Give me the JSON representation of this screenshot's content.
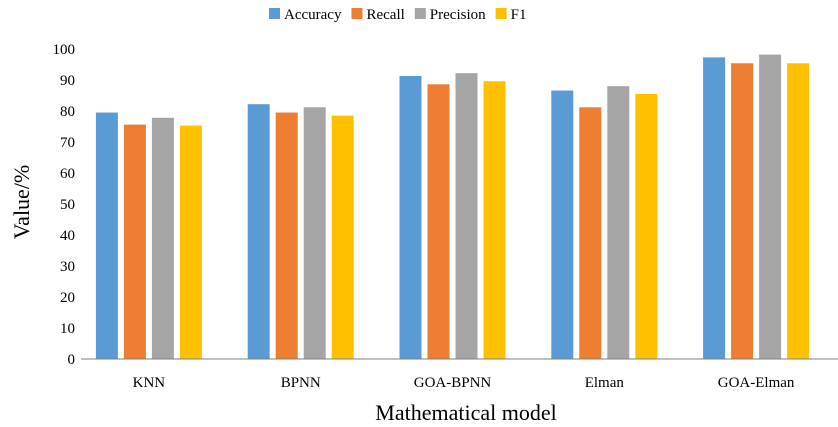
{
  "chart_data": {
    "type": "bar",
    "categories": [
      "KNN",
      "BPNN",
      "GOA-BPNN",
      "Elman",
      "GOA-Elman"
    ],
    "series": [
      {
        "name": "Accuracy",
        "color": "#5b9bd5",
        "values": [
          79.5,
          82.2,
          91.3,
          86.6,
          97.3
        ]
      },
      {
        "name": "Recall",
        "color": "#ed7d31",
        "values": [
          75.6,
          79.5,
          88.6,
          81.2,
          95.4
        ]
      },
      {
        "name": "Precision",
        "color": "#a5a5a5",
        "values": [
          77.8,
          81.2,
          92.2,
          88.0,
          98.2
        ]
      },
      {
        "name": "F1",
        "color": "#ffc000",
        "values": [
          75.3,
          78.5,
          89.6,
          85.5,
          95.4
        ]
      }
    ],
    "title": "",
    "xlabel": "Mathematical model",
    "ylabel": "Value/%",
    "ylim": [
      0,
      100
    ],
    "yticks": [
      0,
      10,
      20,
      30,
      40,
      50,
      60,
      70,
      80,
      90,
      100
    ],
    "grid": false,
    "legend_position": "top"
  }
}
